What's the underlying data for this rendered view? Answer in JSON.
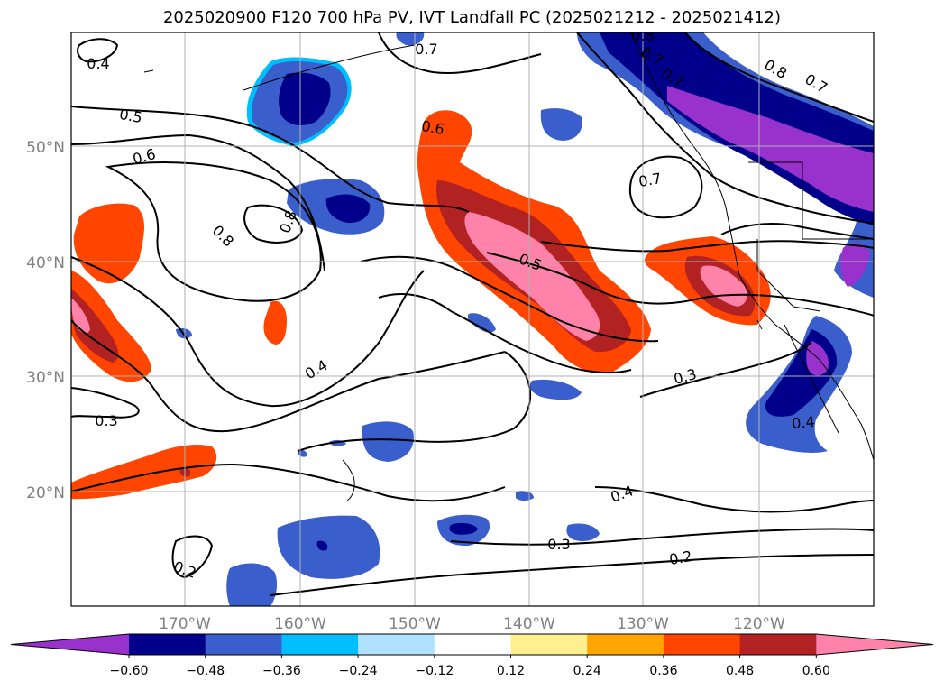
{
  "title": "2025020900 F120 700 hPa PV, IVT Landfall PC (2025021212 - 2025021412)",
  "lat_labels": [
    "50°N",
    "40°N",
    "30°N",
    "20°N"
  ],
  "lon_labels": [
    "170°W",
    "160°W",
    "150°W",
    "140°W",
    "130°W",
    "120°W"
  ],
  "colorbar": {
    "ticks": [
      "−0.60",
      "−0.48",
      "−0.36",
      "−0.24",
      "−0.12",
      "0.12",
      "0.24",
      "0.36",
      "0.48",
      "0.60"
    ],
    "colors": [
      "#9932cc",
      "#00008b",
      "#3a5fcd",
      "#00bfff",
      "#b0e2ff",
      "#ffffff",
      "#fff08f",
      "#ffa500",
      "#ff4500",
      "#b22222",
      "#ff82ab"
    ]
  },
  "contour_labels": [
    "0.4",
    "0.5",
    "0.6",
    "0.8",
    "0.8",
    "0.7",
    "0.6",
    "0.7",
    "0.8",
    "0.7",
    "0.5",
    "0.4",
    "0.3",
    "0.3",
    "0.4",
    "0.3",
    "0.4",
    "0.2",
    "0.2",
    "0.7",
    "0.8",
    "0.7"
  ]
}
